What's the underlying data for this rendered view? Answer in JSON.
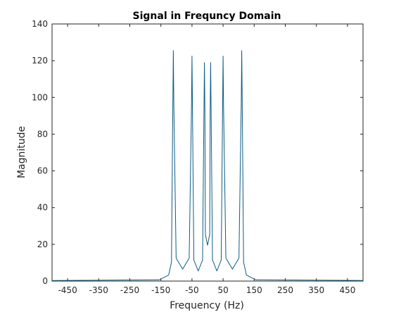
{
  "chart_data": {
    "type": "line",
    "title": "Signal in Frequncy Domain",
    "xlabel": "Frequency (Hz)",
    "ylabel": "Magnitude",
    "xlim": [
      -500,
      500
    ],
    "ylim": [
      0,
      140
    ],
    "xticks": [
      -450,
      -350,
      -250,
      -150,
      -50,
      50,
      150,
      250,
      350,
      450
    ],
    "xtick_labels": [
      "-450",
      "-350",
      "-250",
      "-150",
      "-50",
      "50",
      "150",
      "250",
      "350",
      "450"
    ],
    "yticks": [
      0,
      20,
      40,
      60,
      80,
      100,
      120,
      140
    ],
    "ytick_labels": [
      "0",
      "20",
      "40",
      "60",
      "80",
      "100",
      "120",
      "140"
    ],
    "grid": false,
    "box": true,
    "series": [
      {
        "color": "#0e5c86",
        "peaks": [
          {
            "frequency": -110,
            "magnitude": 125.5
          },
          {
            "frequency": -50,
            "magnitude": 122.5
          },
          {
            "frequency": -10,
            "magnitude": 119
          },
          {
            "frequency": 10,
            "magnitude": 119
          },
          {
            "frequency": 50,
            "magnitude": 122.5
          },
          {
            "frequency": 110,
            "magnitude": 125.5
          }
        ],
        "valleys": [
          {
            "frequency": -80,
            "magnitude": 6.5
          },
          {
            "frequency": -30,
            "magnitude": 5.5
          },
          {
            "frequency": 0,
            "magnitude": 19.5
          },
          {
            "frequency": 30,
            "magnitude": 5.5
          },
          {
            "frequency": 80,
            "magnitude": 6.5
          }
        ],
        "baseline": 0.3
      }
    ]
  }
}
